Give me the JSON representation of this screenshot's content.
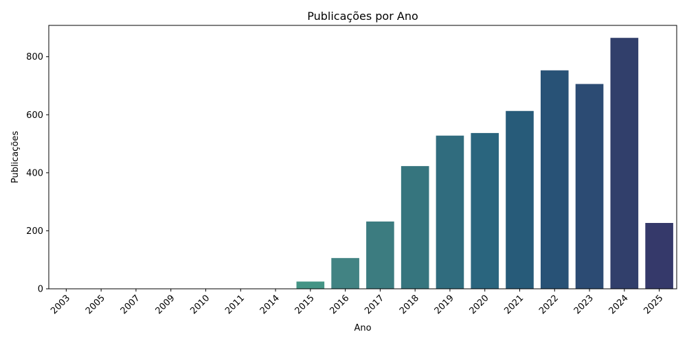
{
  "chart_data": {
    "type": "bar",
    "title": "Publicações por Ano",
    "xlabel": "Ano",
    "ylabel": "Publicações",
    "categories": [
      "2003",
      "2005",
      "2007",
      "2009",
      "2010",
      "2011",
      "2014",
      "2015",
      "2016",
      "2017",
      "2018",
      "2019",
      "2020",
      "2021",
      "2022",
      "2023",
      "2024",
      "2025"
    ],
    "values": [
      1,
      1,
      1,
      1,
      1,
      1,
      1,
      25,
      106,
      232,
      423,
      528,
      537,
      613,
      753,
      706,
      865,
      227
    ],
    "colors": [
      "#4aa285",
      "#49a086",
      "#489e86",
      "#479c86",
      "#469a86",
      "#459885",
      "#449685",
      "#449485",
      "#428383",
      "#3c7c80",
      "#36757e",
      "#306c7e",
      "#2a657e",
      "#275b79",
      "#285276",
      "#2c4b73",
      "#313f6b",
      "#35396a"
    ],
    "yticks": [
      0,
      200,
      400,
      600,
      800
    ],
    "ylim": [
      0,
      908
    ],
    "grid": false,
    "legend": "none"
  }
}
